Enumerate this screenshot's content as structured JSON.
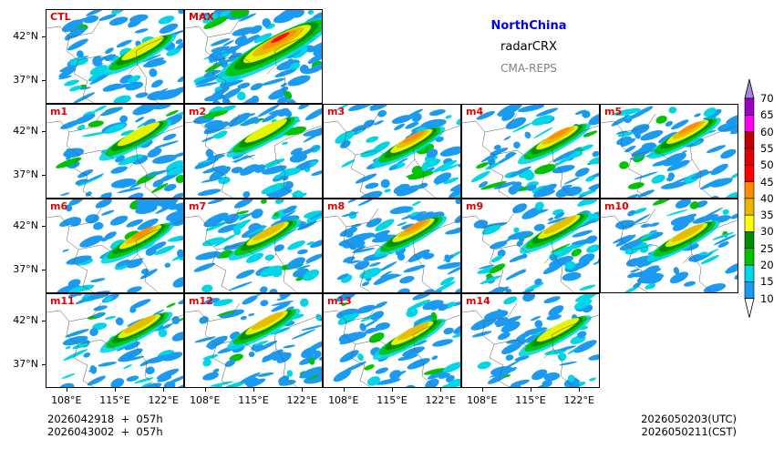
{
  "titles": {
    "region": "NorthChina",
    "variable": "radarCRX",
    "system": "CMA-REPS"
  },
  "panels": [
    "CTL",
    "MAX",
    "m1",
    "m2",
    "m3",
    "m4",
    "m5",
    "m6",
    "m7",
    "m8",
    "m9",
    "m10",
    "m11",
    "m12",
    "m13",
    "m14"
  ],
  "axes": {
    "lat_ticks": [
      "42°N",
      "37°N"
    ],
    "lon_ticks": [
      "108°E",
      "115°E",
      "122°E"
    ],
    "lat_values": [
      42,
      37
    ],
    "lon_values": [
      108,
      115,
      122
    ],
    "lon_range": [
      105,
      125
    ],
    "lat_range": [
      34.3,
      45.1
    ]
  },
  "colorbar": {
    "levels": [
      "10",
      "15",
      "20",
      "25",
      "30",
      "35",
      "40",
      "45",
      "50",
      "55",
      "60",
      "65",
      "70"
    ],
    "colors": [
      "#1a9af0",
      "#00d6e6",
      "#00c400",
      "#008c00",
      "#ffff00",
      "#e6b800",
      "#ff8c00",
      "#ff0000",
      "#dc0000",
      "#c00000",
      "#ff00ee",
      "#9a00c0"
    ],
    "over_color": "#a485e0",
    "under_color": "#ffffff"
  },
  "footer": {
    "init_line1": "2026042918  +  057h",
    "init_line2": "2026043002  +  057h",
    "valid_utc": "2026050203(UTC)",
    "valid_cst": "2026050211(CST)"
  }
}
